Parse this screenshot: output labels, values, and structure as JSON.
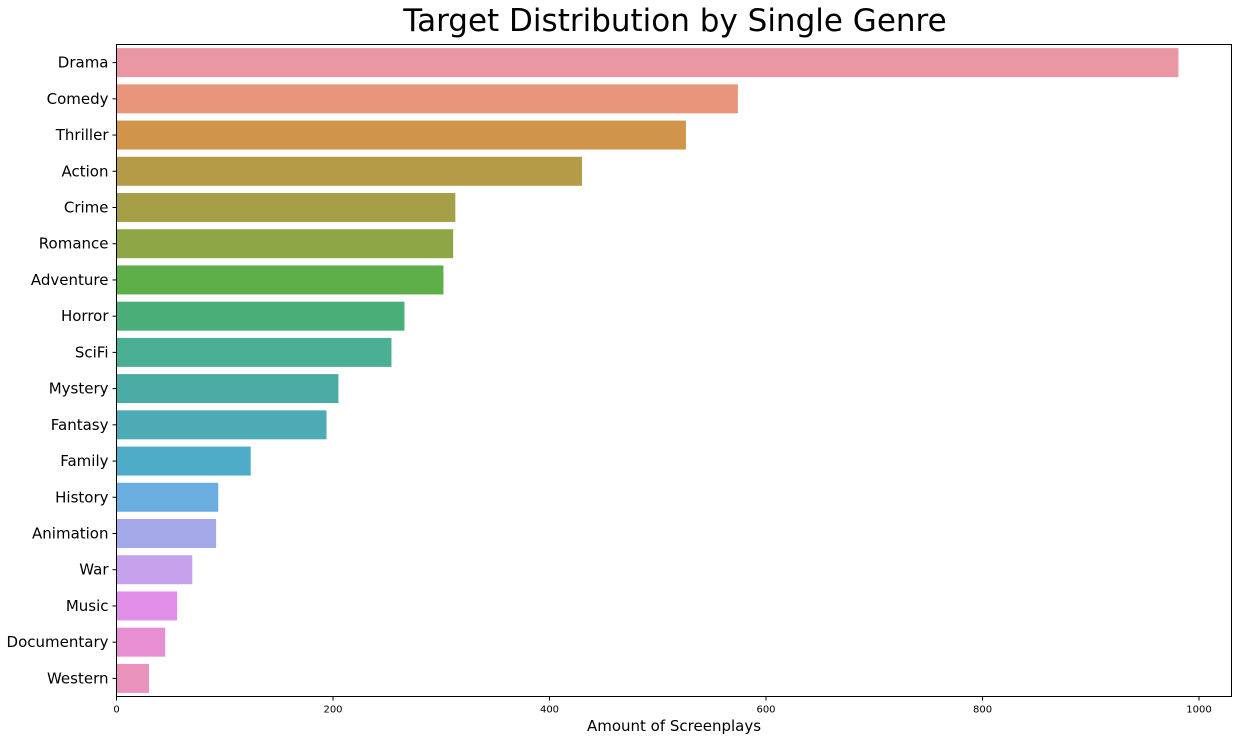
{
  "chart_data": {
    "type": "bar",
    "orientation": "horizontal",
    "title": "Target Distribution by Single Genre",
    "xlabel": "Amount of Screenplays",
    "ylabel": "",
    "xlim": [
      0,
      1030
    ],
    "xticks": [
      0,
      200,
      400,
      600,
      800,
      1000
    ],
    "grid": false,
    "legend": "none",
    "categories": [
      "Drama",
      "Comedy",
      "Thriller",
      "Action",
      "Crime",
      "Romance",
      "Adventure",
      "Horror",
      "SciFi",
      "Mystery",
      "Fantasy",
      "Family",
      "History",
      "Animation",
      "War",
      "Music",
      "Documentary",
      "Western"
    ],
    "values": [
      981,
      574,
      526,
      430,
      313,
      311,
      302,
      266,
      254,
      205,
      194,
      124,
      94,
      92,
      70,
      56,
      45,
      30
    ],
    "colors": [
      "#ea96a3",
      "#e8957b",
      "#d1944b",
      "#b59b48",
      "#a59f47",
      "#8fa647",
      "#5eae4a",
      "#4aae79",
      "#4aae94",
      "#4aaaa4",
      "#4cabb5",
      "#4eacc9",
      "#6aaee1",
      "#a4aae8",
      "#c6a1ec",
      "#e08ee8",
      "#e88ed2",
      "#e992bc"
    ]
  }
}
